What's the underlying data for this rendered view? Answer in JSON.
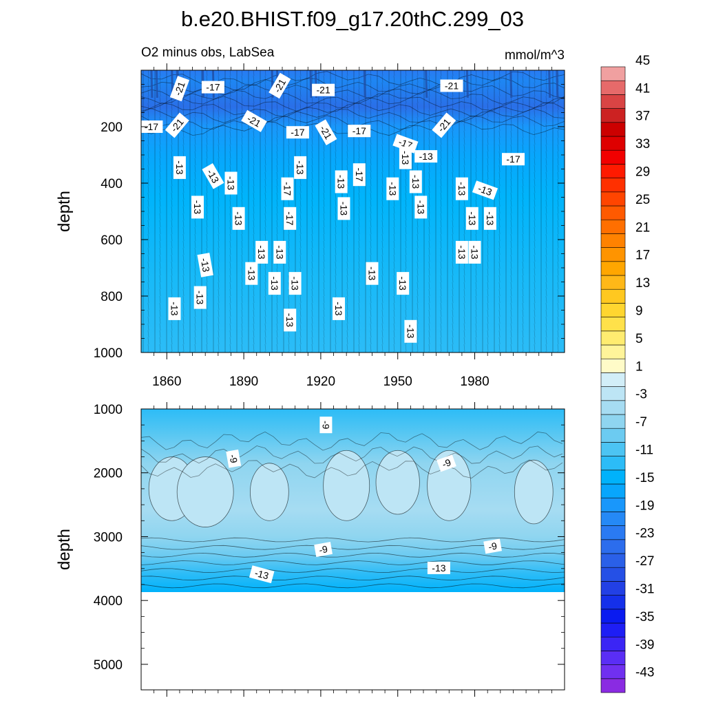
{
  "chart_data": {
    "type": "heatmap",
    "title": "b.e20.BHIST.f09_g17.20thC.299_03",
    "subtitle_left": "O2 minus obs, LabSea",
    "units": "mmol/m^3",
    "ylabel": "depth",
    "xlim": [
      1850,
      2015
    ],
    "x_ticks": [
      1860,
      1890,
      1920,
      1950,
      1980
    ],
    "x_tick_labels": [
      "1860",
      "1890",
      "1920",
      "1950",
      "1980"
    ],
    "panels": [
      {
        "name": "upper",
        "ylim": [
          0,
          1000
        ],
        "y_ticks": [
          200,
          400,
          600,
          800,
          1000
        ],
        "y_tick_labels": [
          "200",
          "400",
          "600",
          "800",
          "1000"
        ],
        "contour_labels": [
          {
            "year": 1865,
            "depth": 65,
            "text": "-21",
            "rot": -70
          },
          {
            "year": 1878,
            "depth": 60,
            "text": "-17",
            "rot": 0
          },
          {
            "year": 1904,
            "depth": 55,
            "text": "-21",
            "rot": -60
          },
          {
            "year": 1921,
            "depth": 70,
            "text": "-21",
            "rot": 0
          },
          {
            "year": 1971,
            "depth": 55,
            "text": "-21",
            "rot": 0
          },
          {
            "year": 1854,
            "depth": 200,
            "text": "-17",
            "rot": 0
          },
          {
            "year": 1864,
            "depth": 195,
            "text": "-21",
            "rot": -50
          },
          {
            "year": 1894,
            "depth": 180,
            "text": "-21",
            "rot": 30
          },
          {
            "year": 1911,
            "depth": 220,
            "text": "-17",
            "rot": 0
          },
          {
            "year": 1922,
            "depth": 220,
            "text": "-21",
            "rot": 60
          },
          {
            "year": 1935,
            "depth": 215,
            "text": "-17",
            "rot": 0
          },
          {
            "year": 1953,
            "depth": 260,
            "text": "-17",
            "rot": 20
          },
          {
            "year": 1968,
            "depth": 195,
            "text": "-21",
            "rot": -50
          },
          {
            "year": 1995,
            "depth": 315,
            "text": "-17",
            "rot": 0
          },
          {
            "year": 1953,
            "depth": 310,
            "text": "-13",
            "rot": 90
          },
          {
            "year": 1865,
            "depth": 345,
            "text": "-13",
            "rot": 90
          },
          {
            "year": 1878,
            "depth": 375,
            "text": "-13",
            "rot": 60
          },
          {
            "year": 1885,
            "depth": 400,
            "text": "-13",
            "rot": 90
          },
          {
            "year": 1907,
            "depth": 420,
            "text": "-17",
            "rot": 90
          },
          {
            "year": 1912,
            "depth": 345,
            "text": "-13",
            "rot": 90
          },
          {
            "year": 1928,
            "depth": 395,
            "text": "-13",
            "rot": 90
          },
          {
            "year": 1935,
            "depth": 370,
            "text": "-17",
            "rot": 90
          },
          {
            "year": 1948,
            "depth": 420,
            "text": "-13",
            "rot": 90
          },
          {
            "year": 1957,
            "depth": 395,
            "text": "-13",
            "rot": 90
          },
          {
            "year": 1961,
            "depth": 305,
            "text": "-13",
            "rot": 0
          },
          {
            "year": 1975,
            "depth": 420,
            "text": "-13",
            "rot": 90
          },
          {
            "year": 1984,
            "depth": 425,
            "text": "-13",
            "rot": 20
          },
          {
            "year": 1872,
            "depth": 485,
            "text": "-13",
            "rot": 90
          },
          {
            "year": 1888,
            "depth": 525,
            "text": "-13",
            "rot": 90
          },
          {
            "year": 1908,
            "depth": 525,
            "text": "-17",
            "rot": 90
          },
          {
            "year": 1929,
            "depth": 490,
            "text": "-13",
            "rot": 90
          },
          {
            "year": 1959,
            "depth": 485,
            "text": "-13",
            "rot": 90
          },
          {
            "year": 1979,
            "depth": 525,
            "text": "-13",
            "rot": 90
          },
          {
            "year": 1986,
            "depth": 525,
            "text": "-13",
            "rot": 90
          },
          {
            "year": 1897,
            "depth": 645,
            "text": "-13",
            "rot": 90
          },
          {
            "year": 1904,
            "depth": 645,
            "text": "-13",
            "rot": 90
          },
          {
            "year": 1975,
            "depth": 645,
            "text": "-13",
            "rot": 90
          },
          {
            "year": 1980,
            "depth": 645,
            "text": "-13",
            "rot": 90
          },
          {
            "year": 1875,
            "depth": 690,
            "text": "-13",
            "rot": 80
          },
          {
            "year": 1893,
            "depth": 720,
            "text": "-13",
            "rot": 90
          },
          {
            "year": 1902,
            "depth": 755,
            "text": "-13",
            "rot": 90
          },
          {
            "year": 1910,
            "depth": 755,
            "text": "-13",
            "rot": 90
          },
          {
            "year": 1940,
            "depth": 720,
            "text": "-13",
            "rot": 90
          },
          {
            "year": 1952,
            "depth": 755,
            "text": "-13",
            "rot": 90
          },
          {
            "year": 1873,
            "depth": 805,
            "text": "-13",
            "rot": 90
          },
          {
            "year": 1863,
            "depth": 845,
            "text": "-13",
            "rot": 90
          },
          {
            "year": 1927,
            "depth": 845,
            "text": "-13",
            "rot": 90
          },
          {
            "year": 1908,
            "depth": 885,
            "text": "-13",
            "rot": 90
          },
          {
            "year": 1955,
            "depth": 925,
            "text": "-13",
            "rot": 90
          }
        ]
      },
      {
        "name": "lower",
        "ylim": [
          1000,
          5400
        ],
        "data_bottom_depth": 3870,
        "y_ticks": [
          1000,
          2000,
          3000,
          4000,
          5000
        ],
        "y_tick_labels": [
          "1000",
          "2000",
          "3000",
          "4000",
          "5000"
        ],
        "contour_labels": [
          {
            "year": 1922,
            "depth": 1250,
            "text": "-9",
            "rot": 90
          },
          {
            "year": 1886,
            "depth": 1780,
            "text": "-9",
            "rot": 80
          },
          {
            "year": 1969,
            "depth": 1850,
            "text": "-9",
            "rot": -20
          },
          {
            "year": 1921,
            "depth": 3200,
            "text": "-9",
            "rot": -10
          },
          {
            "year": 1987,
            "depth": 3150,
            "text": "-9",
            "rot": -10
          },
          {
            "year": 1897,
            "depth": 3590,
            "text": "-13",
            "rot": 15
          },
          {
            "year": 1966,
            "depth": 3490,
            "text": "-13",
            "rot": 0
          }
        ]
      }
    ],
    "colorbar": {
      "levels": [
        -45,
        -43,
        -41,
        -39,
        -37,
        -35,
        -33,
        -31,
        -29,
        -27,
        -25,
        -23,
        -21,
        -19,
        -17,
        -15,
        -13,
        -11,
        -9,
        -7,
        -5,
        -3,
        -1,
        1,
        3,
        5,
        7,
        9,
        11,
        13,
        15,
        17,
        19,
        21,
        23,
        25,
        27,
        29,
        31,
        33,
        35,
        37,
        39,
        41,
        43,
        45
      ],
      "tick_labels": [
        "45",
        "41",
        "37",
        "33",
        "29",
        "25",
        "21",
        "17",
        "13",
        "9",
        "5",
        "1",
        "-3",
        "-7",
        "-11",
        "-15",
        "-19",
        "-23",
        "-27",
        "-31",
        "-35",
        "-39",
        "-43"
      ],
      "colors": [
        "#8a2be2",
        "#7030f0",
        "#5a2ef5",
        "#3b25f5",
        "#1e1ef5",
        "#0a1bf0",
        "#1530ea",
        "#2240e5",
        "#2550e6",
        "#2a60e8",
        "#2c6ded",
        "#2a7af2",
        "#2589f6",
        "#1997fb",
        "#08a6fc",
        "#00b2fb",
        "#2cbcf7",
        "#4cc4f3",
        "#6ccbf1",
        "#8fd5f0",
        "#a6dcf2",
        "#bde5f5",
        "#d2eef8",
        "#fffbc8",
        "#fff49a",
        "#ffec70",
        "#ffe14a",
        "#ffd630",
        "#ffc820",
        "#ffb818",
        "#ffa600",
        "#ff9400",
        "#ff8200",
        "#ff6f00",
        "#ff5a00",
        "#ff4500",
        "#ff3000",
        "#ff1a00",
        "#f20000",
        "#de0000",
        "#cc0000",
        "#cc2222",
        "#d94444",
        "#e66a6a",
        "#f0a0a0"
      ]
    }
  }
}
